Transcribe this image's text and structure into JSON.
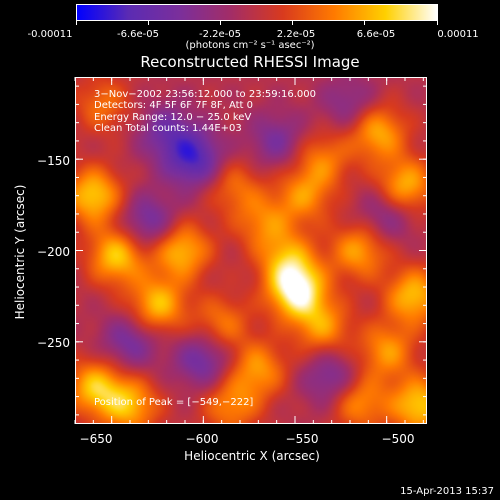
{
  "colorbar": {
    "tick_labels": [
      "-0.00011",
      "-6.6e-05",
      "-2.2e-05",
      "2.2e-05",
      "6.6e-05",
      "0.00011"
    ],
    "units": "(photons cm⁻² s⁻¹ asec⁻²)",
    "range": [
      -0.00011,
      0.00011
    ],
    "colormap": [
      "#0000ff",
      "#5b2bb3",
      "#7b2f9b",
      "#a32d66",
      "#d83a1e",
      "#ff7a00",
      "#ffd000",
      "#ffffff"
    ]
  },
  "chart_data": {
    "type": "heatmap",
    "title": "Reconstructed RHESSI Image",
    "xlabel": "Heliocentric X (arcsec)",
    "ylabel": "Heliocentric Y (arcsec)",
    "xlim": [
      -670,
      -478
    ],
    "ylim": [
      -295,
      -105
    ],
    "x_ticks": [
      -650,
      -600,
      -550,
      -500
    ],
    "y_ticks": [
      -150,
      -200,
      -250
    ],
    "x_tick_labels": [
      "−650",
      "−600",
      "−550",
      "−500"
    ],
    "y_tick_labels": [
      "−150",
      "−200",
      "−250"
    ],
    "peak": {
      "x": -549,
      "y": -222,
      "value": 0.00011
    },
    "annotations": {
      "time_range": "3−Nov−2002 23:56:12.000 to 23:59:16.000",
      "detectors": "Detectors: 4F 5F 6F 7F 8F, Att 0",
      "energy_range": "Energy Range: 12.0 − 25.0 keV",
      "clean_counts": "Clean    Total counts: 1.44E+03",
      "peak_position": "Position of Peak = [−549,−222]"
    },
    "sources": [
      {
        "x": -549,
        "y": -222,
        "amp": 1.0
      },
      {
        "x": -554,
        "y": -205,
        "amp": 0.55
      },
      {
        "x": -535,
        "y": -242,
        "amp": 0.55
      },
      {
        "x": -612,
        "y": -200,
        "amp": 0.7
      },
      {
        "x": -625,
        "y": -230,
        "amp": 0.7
      },
      {
        "x": -647,
        "y": -203,
        "amp": 0.75
      },
      {
        "x": -660,
        "y": -170,
        "amp": 0.75
      },
      {
        "x": -659,
        "y": -275,
        "amp": 0.7
      },
      {
        "x": -640,
        "y": -285,
        "amp": 0.65
      },
      {
        "x": -590,
        "y": -240,
        "amp": 0.45
      },
      {
        "x": -570,
        "y": -265,
        "amp": 0.55
      },
      {
        "x": -585,
        "y": -285,
        "amp": 0.5
      },
      {
        "x": -567,
        "y": -185,
        "amp": 0.45
      },
      {
        "x": -583,
        "y": -165,
        "amp": 0.4
      },
      {
        "x": -545,
        "y": -170,
        "amp": 0.5
      },
      {
        "x": -535,
        "y": -150,
        "amp": 0.45
      },
      {
        "x": -505,
        "y": -135,
        "amp": 0.65
      },
      {
        "x": -490,
        "y": -165,
        "amp": 0.7
      },
      {
        "x": -515,
        "y": -200,
        "amp": 0.6
      },
      {
        "x": -485,
        "y": -225,
        "amp": 0.7
      },
      {
        "x": -500,
        "y": -255,
        "amp": 0.55
      },
      {
        "x": -515,
        "y": -283,
        "amp": 0.55
      },
      {
        "x": -482,
        "y": -285,
        "amp": 0.75
      },
      {
        "x": -655,
        "y": -120,
        "amp": 0.4
      },
      {
        "x": -605,
        "y": -150,
        "amp": -0.7
      },
      {
        "x": -630,
        "y": -185,
        "amp": -0.5
      },
      {
        "x": -620,
        "y": -135,
        "amp": -0.45
      },
      {
        "x": -560,
        "y": -140,
        "amp": -0.4
      },
      {
        "x": -600,
        "y": -260,
        "amp": -0.5
      },
      {
        "x": -640,
        "y": -250,
        "amp": -0.45
      },
      {
        "x": -530,
        "y": -270,
        "amp": -0.45
      },
      {
        "x": -500,
        "y": -180,
        "amp": -0.4
      },
      {
        "x": -520,
        "y": -120,
        "amp": -0.35
      }
    ]
  },
  "footer": {
    "timestamp": "15-Apr-2013 15:37"
  }
}
